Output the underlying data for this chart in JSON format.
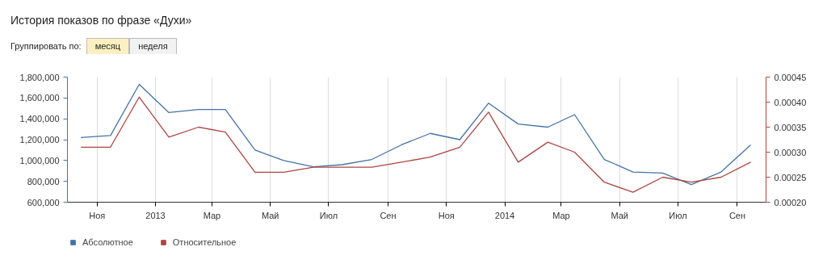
{
  "chart_data": {
    "type": "line",
    "title": "История показов по фразе «Духи»",
    "annotations": [
      "Группировать по:",
      "месяц",
      "неделя"
    ],
    "x": [
      "2012-10-15",
      "2012-11-15",
      "2012-12-15",
      "2013-01-15",
      "2013-02-15",
      "2013-03-15",
      "2013-04-15",
      "2013-05-15",
      "2013-06-15",
      "2013-07-15",
      "2013-08-15",
      "2013-09-15",
      "2013-10-15",
      "2013-11-15",
      "2013-12-15",
      "2014-01-15",
      "2014-02-15",
      "2014-03-15",
      "2014-04-15",
      "2014-05-15",
      "2014-06-15",
      "2014-07-15",
      "2014-08-15",
      "2014-09-15"
    ],
    "series": [
      {
        "name": "Абсолютное",
        "color": "#4572a7",
        "values": [
          1220000,
          1240000,
          1730000,
          1460000,
          1490000,
          1490000,
          1100000,
          1000000,
          940000,
          960000,
          1010000,
          1150000,
          1260000,
          1200000,
          1550000,
          1350000,
          1320000,
          1440000,
          1010000,
          890000,
          880000,
          770000,
          890000,
          1150000
        ]
      },
      {
        "name": "Относительное",
        "color": "#aa4643",
        "axis": "y2",
        "values": [
          0.00031,
          0.00031,
          0.00041,
          0.00033,
          0.00035,
          0.00034,
          0.00026,
          0.00026,
          0.00027,
          0.00027,
          0.00027,
          0.00028,
          0.00029,
          0.00031,
          0.00038,
          0.00028,
          0.00032,
          0.0003,
          0.00024,
          0.00022,
          0.00025,
          0.00024,
          0.00025,
          0.00028
        ]
      }
    ],
    "xlim": [
      "2012-10-01",
      "2014-10-01"
    ],
    "xticks": [
      {
        "value": "2012-11-01",
        "label": "Ноя"
      },
      {
        "value": "2013-01-01",
        "label": "2013"
      },
      {
        "value": "2013-03-01",
        "label": "Мар"
      },
      {
        "value": "2013-05-01",
        "label": "Май"
      },
      {
        "value": "2013-07-01",
        "label": "Июл"
      },
      {
        "value": "2013-09-01",
        "label": "Сен"
      },
      {
        "value": "2013-11-01",
        "label": "Ноя"
      },
      {
        "value": "2014-01-01",
        "label": "2014"
      },
      {
        "value": "2014-03-01",
        "label": "Мар"
      },
      {
        "value": "2014-05-01",
        "label": "Май"
      },
      {
        "value": "2014-07-01",
        "label": "Июл"
      },
      {
        "value": "2014-09-01",
        "label": "Сен"
      }
    ],
    "ylim": [
      600000,
      1800000
    ],
    "yticks": [
      {
        "value": 600000,
        "label": "600,000"
      },
      {
        "value": 800000,
        "label": "800,000"
      },
      {
        "value": 1000000,
        "label": "1,000,000"
      },
      {
        "value": 1200000,
        "label": "1,200,000"
      },
      {
        "value": 1400000,
        "label": "1,400,000"
      },
      {
        "value": 1600000,
        "label": "1,600,000"
      },
      {
        "value": 1800000,
        "label": "1,800,000"
      }
    ],
    "y2lim": [
      0.0002,
      0.00045
    ],
    "y2ticks": [
      {
        "value": 0.0002,
        "label": "0.00020"
      },
      {
        "value": 0.00025,
        "label": "0.00025"
      },
      {
        "value": 0.0003,
        "label": "0.00030"
      },
      {
        "value": 0.00035,
        "label": "0.00035"
      },
      {
        "value": 0.0004,
        "label": "0.00040"
      },
      {
        "value": 0.00045,
        "label": "0.00045"
      }
    ],
    "grid": "x",
    "legend": "bottom left",
    "marker": "none",
    "line_style": "solid"
  }
}
